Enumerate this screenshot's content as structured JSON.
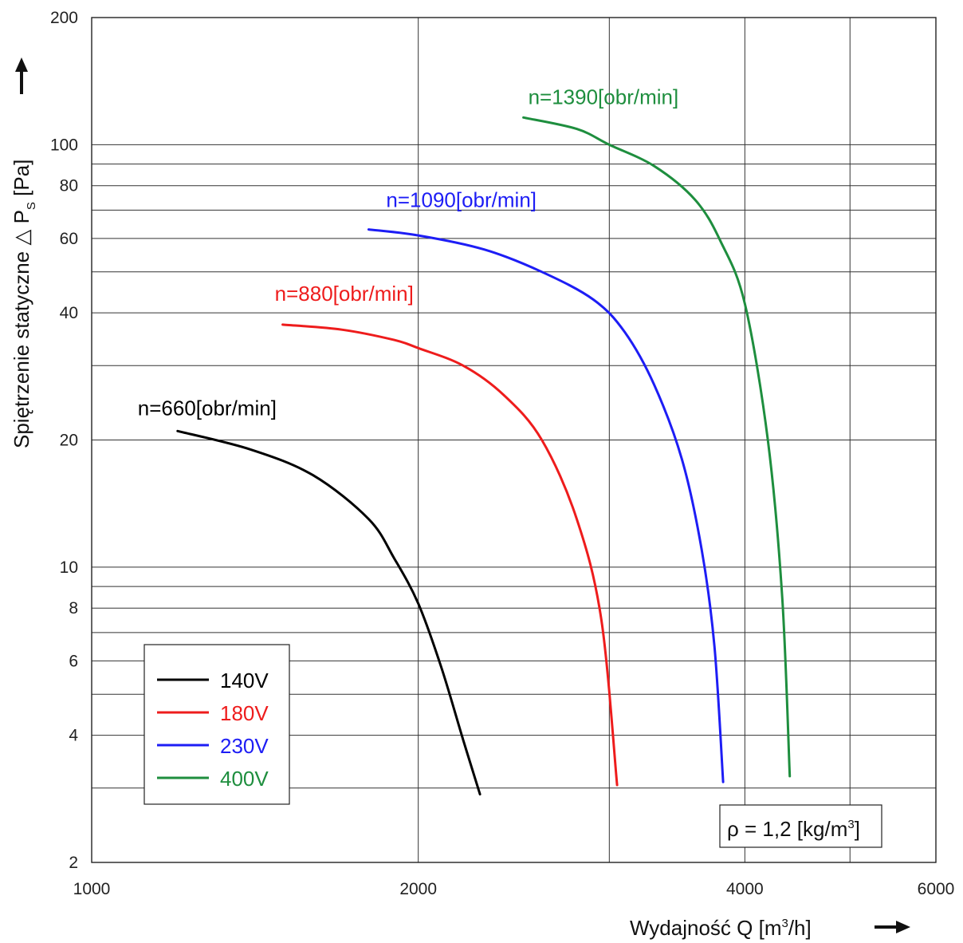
{
  "chart_data": {
    "type": "line",
    "xscale": "log",
    "yscale": "log",
    "xlim": [
      1000,
      6000
    ],
    "ylim": [
      2,
      200
    ],
    "xticks": [
      "1000",
      "2000",
      "4000",
      "6000"
    ],
    "xtick_values": [
      1000,
      2000,
      4000,
      6000
    ],
    "yticks": [
      "2",
      "4",
      "6",
      "8",
      "10",
      "20",
      "40",
      "60",
      "80",
      "100",
      "200"
    ],
    "ytick_values": [
      2,
      4,
      6,
      8,
      10,
      20,
      40,
      60,
      80,
      100,
      200
    ],
    "x_gridlines": [
      2000,
      3000,
      4000,
      5000
    ],
    "y_gridlines": [
      3,
      4,
      5,
      6,
      7,
      8,
      9,
      10,
      20,
      30,
      40,
      50,
      60,
      70,
      80,
      90,
      100
    ],
    "grid": true,
    "xlabel": {
      "main": "Wydajność  Q  [m",
      "sup": "3",
      "tail": "/h]"
    },
    "ylabel": {
      "main": "Spiętrzenie statyczne  △ P",
      "sub": "S",
      "tail": " [Pa]"
    },
    "legend_position": "lower-left",
    "annotation": {
      "main": "ρ = 1,2 [kg/m",
      "sup": "3",
      "tail": "]"
    },
    "series": [
      {
        "name": "140V",
        "curve_label": "n=660[obr/min]",
        "color": "#000000",
        "x": [
          1200,
          1400,
          1600,
          1800,
          1900,
          2000,
          2100,
          2200,
          2280
        ],
        "y": [
          21,
          19,
          16.5,
          13,
          10.5,
          8.2,
          5.8,
          3.9,
          2.9
        ]
      },
      {
        "name": "180V",
        "curve_label": "n=880[obr/min]",
        "color": "#ee1c1c",
        "x": [
          1500,
          1700,
          1900,
          2000,
          2200,
          2400,
          2600,
          2800,
          2950,
          3050
        ],
        "y": [
          37.5,
          36.5,
          34.5,
          33,
          30,
          25.5,
          20,
          13,
          7.5,
          3.05
        ]
      },
      {
        "name": "230V",
        "curve_label": "n=1090[obr/min]",
        "color": "#1d1df5",
        "x": [
          1800,
          2000,
          2300,
          2600,
          2900,
          3100,
          3300,
          3500,
          3650,
          3750,
          3820
        ],
        "y": [
          63,
          61,
          56.5,
          50,
          43,
          36,
          27,
          18,
          11,
          6.5,
          3.1
        ]
      },
      {
        "name": "400V",
        "curve_label": "n=1390[obr/min]",
        "color": "#1e8e3e",
        "x": [
          2500,
          2800,
          3000,
          3300,
          3600,
          3800,
          4000,
          4200,
          4330,
          4400
        ],
        "y": [
          116,
          109,
          100,
          89,
          74,
          59,
          42,
          20,
          8.5,
          3.2
        ]
      }
    ]
  }
}
